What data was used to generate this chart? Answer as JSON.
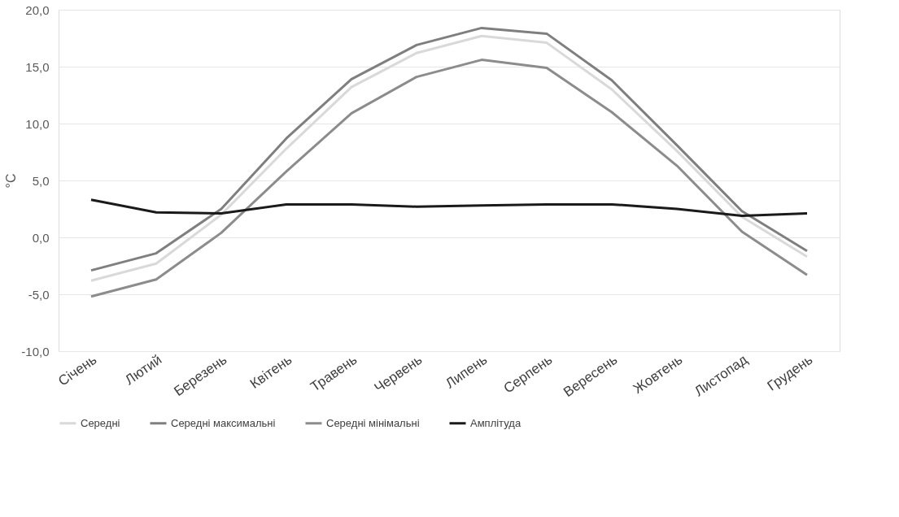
{
  "chart_data": {
    "type": "line",
    "ylabel": "°C",
    "categories": [
      "Січень",
      "Лютий",
      "Березень",
      "Квітень",
      "Травень",
      "Червень",
      "Липень",
      "Серпень",
      "Вересень",
      "Жовтень",
      "Листопад",
      "Грудень"
    ],
    "series": [
      {
        "name": "Середні",
        "color": "#d9d9d9",
        "values": [
          -3.8,
          -2.3,
          2.0,
          7.8,
          13.2,
          16.2,
          17.7,
          17.1,
          13.0,
          7.6,
          1.8,
          -1.7
        ]
      },
      {
        "name": "Середні максимальні",
        "color": "#7f7f7f",
        "values": [
          -2.9,
          -1.4,
          2.5,
          8.7,
          13.9,
          16.9,
          18.4,
          17.9,
          13.8,
          8.1,
          2.3,
          -1.2
        ]
      },
      {
        "name": "Середні мінімальні",
        "color": "#8c8c8c",
        "values": [
          -5.2,
          -3.7,
          0.4,
          5.8,
          10.9,
          14.1,
          15.6,
          14.9,
          11.0,
          6.3,
          0.5,
          -3.3
        ]
      },
      {
        "name": "Амплітуда",
        "color": "#1a1a1a",
        "values": [
          3.3,
          2.2,
          2.1,
          2.9,
          2.9,
          2.7,
          2.8,
          2.9,
          2.9,
          2.5,
          1.9,
          2.1
        ]
      }
    ],
    "ylim": [
      -10,
      20
    ],
    "yticks": [
      {
        "value": -10,
        "label": "-10,0"
      },
      {
        "value": -5,
        "label": "-5,0"
      },
      {
        "value": 0,
        "label": "0,0"
      },
      {
        "value": 5,
        "label": "5,0"
      },
      {
        "value": 10,
        "label": "10,0"
      },
      {
        "value": 15,
        "label": "15,0"
      },
      {
        "value": 20,
        "label": "20,0"
      }
    ],
    "grid": "y",
    "legend": "bottom",
    "line_style": "solid",
    "marker": "none"
  }
}
